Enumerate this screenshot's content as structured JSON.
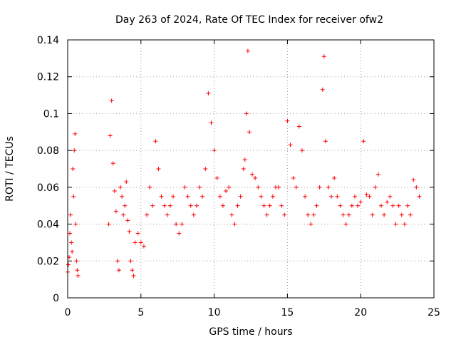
{
  "chart_data": {
    "type": "scatter",
    "title": "Day 263 of 2024, Rate Of TEC Index for receiver ofw2",
    "xlabel": "GPS time / hours",
    "ylabel": "ROTI / TECUs",
    "xlim": [
      0,
      25
    ],
    "ylim": [
      0,
      0.14
    ],
    "xticks": [
      "0",
      "5",
      "10",
      "15",
      "20",
      "25"
    ],
    "yticks": [
      "0",
      "0.02",
      "0.04",
      "0.06",
      "0.08",
      "0.1",
      "0.12",
      "0.14"
    ],
    "xtick_values": [
      0,
      5,
      10,
      15,
      20,
      25
    ],
    "ytick_values": [
      0,
      0.02,
      0.04,
      0.06,
      0.08,
      0.1,
      0.12,
      0.14
    ],
    "grid": true,
    "marker": "+",
    "color": "#ff0000",
    "series": [
      {
        "x": [
          0.0,
          0.05,
          0.1,
          0.15,
          0.2,
          0.25,
          0.3,
          0.35,
          0.4,
          0.45,
          0.5,
          0.55,
          0.6,
          0.65,
          0.7,
          2.8,
          2.9,
          3.0,
          3.1,
          3.2,
          3.3,
          3.4,
          3.5,
          3.6,
          3.7,
          3.8,
          3.9,
          4.0,
          4.1,
          4.2,
          4.3,
          4.4,
          4.5,
          4.6,
          4.8,
          5.0,
          5.2,
          5.4,
          5.6,
          5.8,
          6.0,
          6.2,
          6.4,
          6.6,
          6.8,
          7.0,
          7.2,
          7.4,
          7.6,
          7.8,
          8.0,
          8.2,
          8.4,
          8.6,
          8.8,
          9.0,
          9.2,
          9.4,
          9.6,
          9.8,
          10.0,
          10.2,
          10.4,
          10.6,
          10.8,
          11.0,
          11.2,
          11.4,
          11.6,
          11.8,
          12.0,
          12.1,
          12.2,
          12.3,
          12.4,
          12.6,
          12.8,
          13.0,
          13.2,
          13.4,
          13.6,
          13.8,
          14.0,
          14.2,
          14.4,
          14.6,
          14.8,
          15.0,
          15.2,
          15.4,
          15.6,
          15.8,
          16.0,
          16.2,
          16.4,
          16.6,
          16.8,
          17.0,
          17.2,
          17.4,
          17.5,
          17.6,
          17.8,
          18.0,
          18.2,
          18.4,
          18.6,
          18.8,
          19.0,
          19.2,
          19.4,
          19.6,
          19.8,
          20.0,
          20.2,
          20.4,
          20.6,
          20.8,
          21.0,
          21.2,
          21.4,
          21.6,
          21.8,
          22.0,
          22.2,
          22.4,
          22.6,
          22.8,
          23.0,
          23.2,
          23.4,
          23.6,
          23.8,
          24.0
        ],
        "y": [
          0.014,
          0.018,
          0.022,
          0.035,
          0.045,
          0.03,
          0.025,
          0.07,
          0.055,
          0.08,
          0.089,
          0.04,
          0.02,
          0.015,
          0.012,
          0.04,
          0.088,
          0.107,
          0.073,
          0.058,
          0.047,
          0.02,
          0.015,
          0.06,
          0.055,
          0.045,
          0.05,
          0.063,
          0.042,
          0.036,
          0.02,
          0.015,
          0.012,
          0.03,
          0.035,
          0.03,
          0.028,
          0.045,
          0.06,
          0.05,
          0.085,
          0.07,
          0.055,
          0.05,
          0.045,
          0.05,
          0.055,
          0.04,
          0.035,
          0.04,
          0.06,
          0.055,
          0.05,
          0.045,
          0.05,
          0.06,
          0.055,
          0.07,
          0.111,
          0.095,
          0.08,
          0.065,
          0.055,
          0.05,
          0.058,
          0.06,
          0.045,
          0.04,
          0.05,
          0.055,
          0.07,
          0.075,
          0.1,
          0.134,
          0.09,
          0.067,
          0.065,
          0.06,
          0.055,
          0.05,
          0.045,
          0.05,
          0.055,
          0.06,
          0.06,
          0.05,
          0.045,
          0.096,
          0.083,
          0.065,
          0.06,
          0.093,
          0.08,
          0.055,
          0.045,
          0.04,
          0.045,
          0.05,
          0.06,
          0.113,
          0.131,
          0.085,
          0.06,
          0.055,
          0.065,
          0.055,
          0.05,
          0.045,
          0.04,
          0.045,
          0.05,
          0.055,
          0.05,
          0.052,
          0.085,
          0.056,
          0.055,
          0.045,
          0.06,
          0.067,
          0.05,
          0.045,
          0.052,
          0.055,
          0.05,
          0.04,
          0.05,
          0.045,
          0.04,
          0.05,
          0.045,
          0.064,
          0.06,
          0.055
        ]
      }
    ]
  }
}
